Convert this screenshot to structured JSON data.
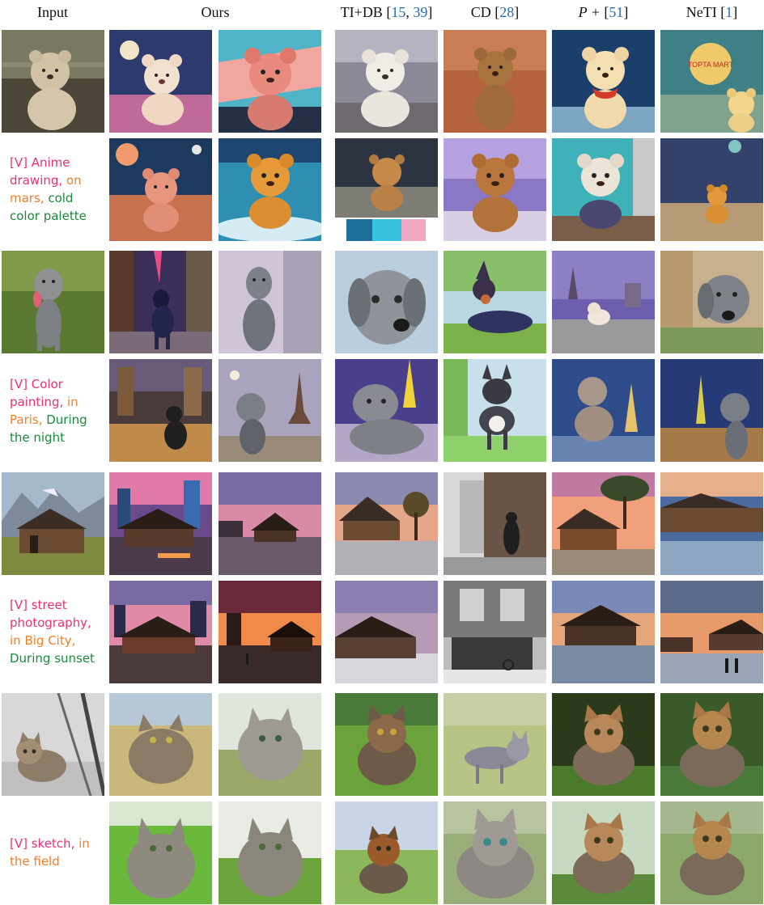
{
  "headers": {
    "input": "Input",
    "ours": "Ours",
    "tidb": {
      "name": "TI+DB [",
      "ref1": "15",
      "sep": ", ",
      "ref2": "39",
      "close": "]"
    },
    "cd": {
      "name": "CD [",
      "ref": "28",
      "close": "]"
    },
    "pplus": {
      "name": "P +",
      "open": " [",
      "ref": "51",
      "close": "]"
    },
    "neti": {
      "name": "NeTI [",
      "ref": "1",
      "close": "]"
    }
  },
  "prompts": [
    {
      "parts": [
        {
          "text": "[V] Anime drawing,",
          "color": "#e8317a"
        },
        {
          "text": " on mars,",
          "color": "#f07f2a"
        },
        {
          "text": " cold color palette",
          "color": "#1a8a3c"
        }
      ]
    },
    {
      "parts": [
        {
          "text": "[V] Color painting,",
          "color": "#e8317a"
        },
        {
          "text": " in Paris,",
          "color": "#f07f2a"
        },
        {
          "text": " During the night",
          "color": "#1a8a3c"
        }
      ]
    },
    {
      "parts": [
        {
          "text": "[V] street photography,",
          "color": "#e8317a"
        },
        {
          "text": " in Big City,",
          "color": "#f07f2a"
        },
        {
          "text": " During sunset",
          "color": "#1a8a3c"
        }
      ]
    },
    {
      "parts": [
        {
          "text": "[V] sketch,",
          "color": "#e8317a"
        },
        {
          "text": " in the field",
          "color": "#f07f2a"
        }
      ]
    }
  ],
  "overlay_texts": {
    "neti_sign": "TOPTA MART"
  },
  "colors": {
    "teddy": "#c9a77a",
    "dog": "#8a8f96",
    "barn": "#6b4a32",
    "kitten": "#9a8a78",
    "mars": "#c8714e",
    "night": "#3d3f7a",
    "sunset": "#f08a4b",
    "grass": "#6aa23c"
  }
}
